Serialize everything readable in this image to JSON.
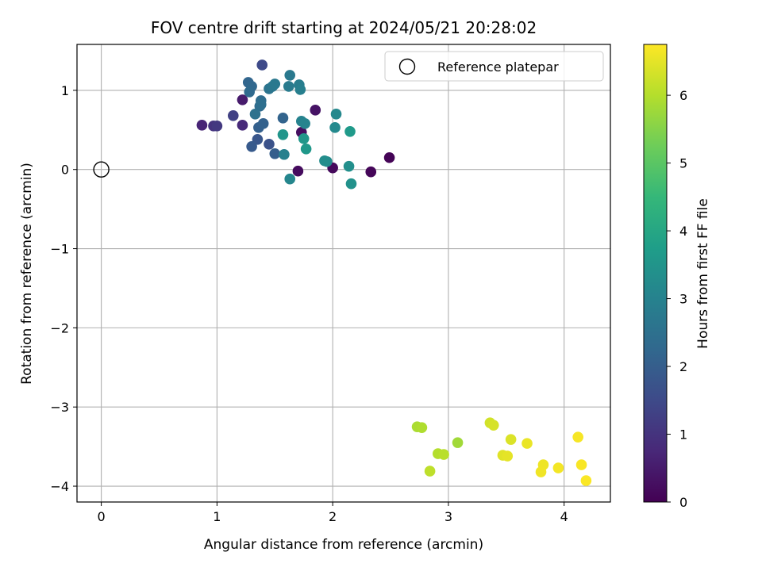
{
  "chart_data": {
    "type": "scatter",
    "title": "FOV centre drift starting at 2024/05/21 20:28:02",
    "xlabel": "Angular distance from reference (arcmin)",
    "ylabel": "Rotation from reference (arcmin)",
    "xlim": [
      -0.21,
      4.4
    ],
    "ylim": [
      -4.2,
      1.58
    ],
    "xticks": [
      0,
      1,
      2,
      3,
      4
    ],
    "yticks": [
      1,
      0,
      -1,
      -2,
      -3,
      -4
    ],
    "xtick_labels": [
      "0",
      "1",
      "2",
      "3",
      "4"
    ],
    "ytick_labels": [
      "1",
      "0",
      "−1",
      "−2",
      "−3",
      "−4"
    ],
    "grid": true,
    "legend": {
      "placement": "top-right",
      "entries": [
        {
          "label": "Reference platepar",
          "marker": "open-circle"
        }
      ]
    },
    "reference": {
      "x": 0,
      "y": 0
    },
    "colorbar": {
      "label": "Hours from first FF file",
      "min": 0,
      "max": 6.75,
      "colormap": "viridis",
      "ticks": [
        0,
        1,
        2,
        3,
        4,
        5,
        6
      ],
      "tick_labels": [
        "0",
        "1",
        "2",
        "3",
        "4",
        "5",
        "6"
      ]
    },
    "points": [
      {
        "x": 2.49,
        "y": 0.15,
        "c": 0.05
      },
      {
        "x": 2.33,
        "y": -0.03,
        "c": 0.1
      },
      {
        "x": 2.0,
        "y": 0.02,
        "c": 0.15
      },
      {
        "x": 1.7,
        "y": -0.02,
        "c": 0.2
      },
      {
        "x": 1.73,
        "y": 0.47,
        "c": 0.25
      },
      {
        "x": 1.85,
        "y": 0.75,
        "c": 0.35
      },
      {
        "x": 1.22,
        "y": 0.88,
        "c": 0.5
      },
      {
        "x": 0.87,
        "y": 0.56,
        "c": 0.7
      },
      {
        "x": 1.22,
        "y": 0.56,
        "c": 0.8
      },
      {
        "x": 0.97,
        "y": 0.55,
        "c": 1.0
      },
      {
        "x": 1.0,
        "y": 0.55,
        "c": 1.1
      },
      {
        "x": 1.14,
        "y": 0.68,
        "c": 1.3
      },
      {
        "x": 1.39,
        "y": 1.32,
        "c": 1.5
      },
      {
        "x": 1.45,
        "y": 0.32,
        "c": 1.7
      },
      {
        "x": 1.35,
        "y": 0.38,
        "c": 1.8
      },
      {
        "x": 1.3,
        "y": 0.29,
        "c": 1.9
      },
      {
        "x": 1.5,
        "y": 0.2,
        "c": 2.0
      },
      {
        "x": 1.36,
        "y": 0.53,
        "c": 2.05
      },
      {
        "x": 1.4,
        "y": 0.58,
        "c": 2.1
      },
      {
        "x": 1.57,
        "y": 0.65,
        "c": 2.15
      },
      {
        "x": 1.27,
        "y": 1.1,
        "c": 2.2
      },
      {
        "x": 1.3,
        "y": 1.05,
        "c": 2.25
      },
      {
        "x": 1.28,
        "y": 0.98,
        "c": 2.3
      },
      {
        "x": 1.37,
        "y": 0.8,
        "c": 2.35
      },
      {
        "x": 1.38,
        "y": 0.87,
        "c": 2.4
      },
      {
        "x": 1.38,
        "y": 0.82,
        "c": 2.45
      },
      {
        "x": 1.33,
        "y": 0.7,
        "c": 2.55
      },
      {
        "x": 1.45,
        "y": 1.02,
        "c": 2.6
      },
      {
        "x": 1.48,
        "y": 1.05,
        "c": 2.65
      },
      {
        "x": 1.5,
        "y": 1.08,
        "c": 2.7
      },
      {
        "x": 1.63,
        "y": 1.19,
        "c": 2.75
      },
      {
        "x": 1.62,
        "y": 1.05,
        "c": 2.8
      },
      {
        "x": 1.71,
        "y": 1.07,
        "c": 2.85
      },
      {
        "x": 1.72,
        "y": 1.01,
        "c": 2.9
      },
      {
        "x": 1.58,
        "y": 0.19,
        "c": 2.95
      },
      {
        "x": 1.73,
        "y": 0.61,
        "c": 3.0
      },
      {
        "x": 1.76,
        "y": 0.58,
        "c": 3.05
      },
      {
        "x": 1.63,
        "y": -0.12,
        "c": 3.1
      },
      {
        "x": 2.03,
        "y": 0.7,
        "c": 3.15
      },
      {
        "x": 2.02,
        "y": 0.53,
        "c": 3.2
      },
      {
        "x": 1.95,
        "y": 0.1,
        "c": 3.25
      },
      {
        "x": 1.93,
        "y": 0.11,
        "c": 3.3
      },
      {
        "x": 2.14,
        "y": 0.04,
        "c": 3.35
      },
      {
        "x": 2.16,
        "y": -0.18,
        "c": 3.4
      },
      {
        "x": 1.57,
        "y": 0.44,
        "c": 3.5
      },
      {
        "x": 1.75,
        "y": 0.39,
        "c": 3.55
      },
      {
        "x": 1.77,
        "y": 0.26,
        "c": 3.6
      },
      {
        "x": 2.15,
        "y": 0.48,
        "c": 3.65
      },
      {
        "x": 3.08,
        "y": -3.45,
        "c": 5.8
      },
      {
        "x": 2.73,
        "y": -3.25,
        "c": 5.9
      },
      {
        "x": 2.77,
        "y": -3.26,
        "c": 5.95
      },
      {
        "x": 2.91,
        "y": -3.59,
        "c": 6.0
      },
      {
        "x": 2.96,
        "y": -3.6,
        "c": 6.05
      },
      {
        "x": 2.84,
        "y": -3.81,
        "c": 6.1
      },
      {
        "x": 3.36,
        "y": -3.2,
        "c": 6.3
      },
      {
        "x": 3.39,
        "y": -3.23,
        "c": 6.35
      },
      {
        "x": 3.54,
        "y": -3.41,
        "c": 6.4
      },
      {
        "x": 3.47,
        "y": -3.61,
        "c": 6.45
      },
      {
        "x": 3.51,
        "y": -3.62,
        "c": 6.5
      },
      {
        "x": 3.68,
        "y": -3.46,
        "c": 6.55
      },
      {
        "x": 3.82,
        "y": -3.73,
        "c": 6.6
      },
      {
        "x": 3.8,
        "y": -3.82,
        "c": 6.62
      },
      {
        "x": 3.95,
        "y": -3.77,
        "c": 6.65
      },
      {
        "x": 4.12,
        "y": -3.38,
        "c": 6.68
      },
      {
        "x": 4.15,
        "y": -3.73,
        "c": 6.7
      },
      {
        "x": 4.19,
        "y": -3.93,
        "c": 6.72
      }
    ]
  }
}
